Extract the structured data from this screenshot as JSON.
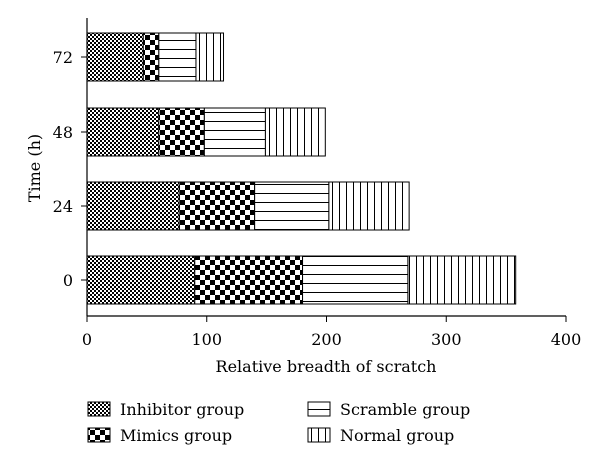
{
  "chart_data": {
    "type": "bar",
    "orientation": "horizontal",
    "stacked": true,
    "categories": [
      "0",
      "24",
      "48",
      "72"
    ],
    "series": [
      {
        "name": "Inhibitor group",
        "values": [
          90,
          77,
          60,
          47
        ],
        "pattern": "fine-checker"
      },
      {
        "name": "Mimics group",
        "values": [
          90,
          63,
          38,
          13
        ],
        "pattern": "coarse-checker"
      },
      {
        "name": "Scramble group",
        "values": [
          88,
          62,
          51,
          31
        ],
        "pattern": "horizontal-lines"
      },
      {
        "name": "Normal group",
        "values": [
          90,
          67,
          50,
          23
        ],
        "pattern": "vertical-lines"
      }
    ],
    "xlabel": "Relative breadth of scratch",
    "ylabel": "Time (h)",
    "xlim": [
      0,
      400
    ],
    "xticks": [
      "0",
      "100",
      "200",
      "300",
      "400"
    ],
    "grid": false,
    "legend_position": "bottom"
  }
}
